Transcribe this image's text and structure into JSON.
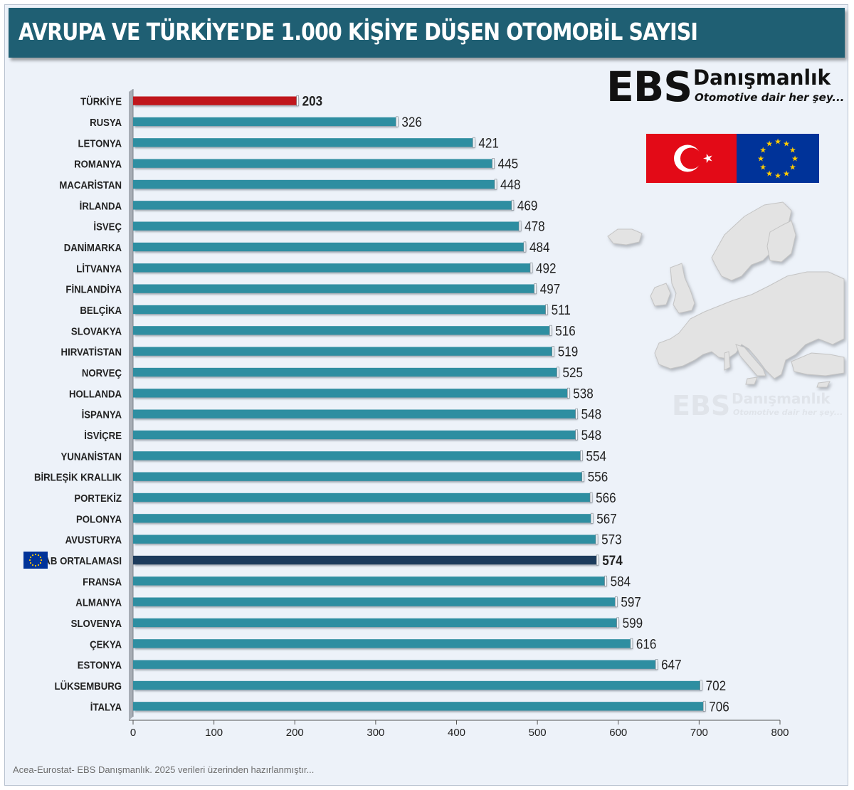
{
  "title": "AVRUPA VE TÜRKİYE'DE 1.000 KİŞİYE DÜŞEN OTOMOBİL SAYISI",
  "logo": {
    "brand": "EBS",
    "name": "Danışmanlık",
    "tagline": "Otomotive dair her şey..."
  },
  "source": "Acea-Eurostat- EBS Danışmanlık. 2025 verileri üzerinden hazırlanmıştır...",
  "colors": {
    "bar": "#2e8ea1",
    "highlight_turkey": "#c0141c",
    "highlight_eu": "#1b3a5c",
    "title_bg": "#1f5f73"
  },
  "icons": [
    "turkey-flag-icon",
    "eu-flag-icon",
    "europe-map-icon"
  ],
  "chart_data": {
    "type": "bar",
    "orientation": "horizontal",
    "categories": [
      "TÜRKİYE",
      "RUSYA",
      "LETONYA",
      "ROMANYA",
      "MACARİSTAN",
      "İRLANDA",
      "İSVEÇ",
      "DANİMARKA",
      "LİTVANYA",
      "FİNLANDİYA",
      "BELÇİKA",
      "SLOVAKYA",
      "HIRVATİSTAN",
      "NORVEÇ",
      "HOLLANDA",
      "İSPANYA",
      "İSVİÇRE",
      "YUNANİSTAN",
      "BİRLEŞİK KRALLIK",
      "PORTEKİZ",
      "POLONYA",
      "AVUSTURYA",
      "AB ORTALAMASI",
      "FRANSA",
      "ALMANYA",
      "SLOVENYA",
      "ÇEKYA",
      "ESTONYA",
      "LÜKSEMBURG",
      "İTALYA"
    ],
    "values": [
      203,
      326,
      421,
      445,
      448,
      469,
      478,
      484,
      492,
      497,
      511,
      516,
      519,
      525,
      538,
      548,
      548,
      554,
      556,
      566,
      567,
      573,
      574,
      584,
      597,
      599,
      616,
      647,
      702,
      706
    ],
    "highlight": {
      "TÜRKİYE": "turkey",
      "AB ORTALAMASI": "eu"
    },
    "xlim": [
      0,
      800
    ],
    "xticks": [
      "0",
      "100",
      "200",
      "300",
      "400",
      "500",
      "600",
      "700",
      "800"
    ],
    "grid": false,
    "legend": "none"
  }
}
